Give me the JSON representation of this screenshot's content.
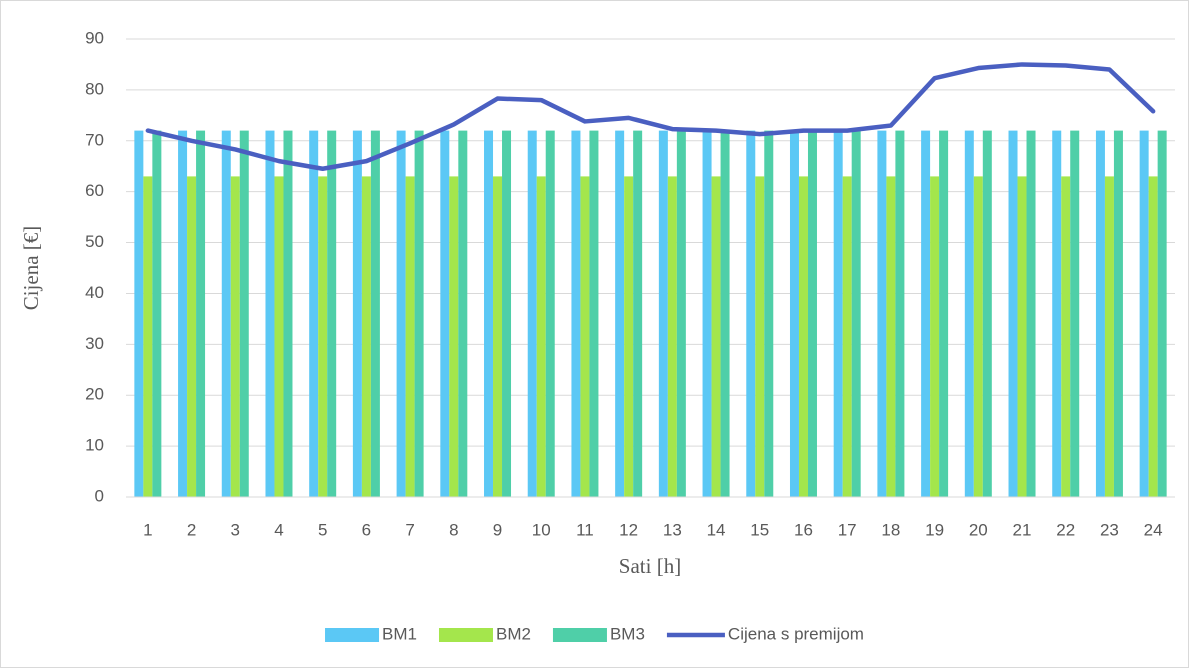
{
  "chart_data": {
    "type": "combo",
    "x_label": "Sati [h]",
    "y_label": "Cijena [€]",
    "categories": [
      1,
      2,
      3,
      4,
      5,
      6,
      7,
      8,
      9,
      10,
      11,
      12,
      13,
      14,
      15,
      16,
      17,
      18,
      19,
      20,
      21,
      22,
      23,
      24
    ],
    "series": [
      {
        "name": "BM1",
        "type": "bar",
        "color": "#5bc8f5",
        "values": [
          72,
          72,
          72,
          72,
          72,
          72,
          72,
          72,
          72,
          72,
          72,
          72,
          72,
          72,
          72,
          72,
          72,
          72,
          72,
          72,
          72,
          72,
          72,
          72
        ]
      },
      {
        "name": "BM2",
        "type": "bar",
        "color": "#a4e64c",
        "values": [
          63,
          63,
          63,
          63,
          63,
          63,
          63,
          63,
          63,
          63,
          63,
          63,
          63,
          63,
          63,
          63,
          63,
          63,
          63,
          63,
          63,
          63,
          63,
          63
        ]
      },
      {
        "name": "BM3",
        "type": "bar",
        "color": "#4fcfa8",
        "values": [
          72,
          72,
          72,
          72,
          72,
          72,
          72,
          72,
          72,
          72,
          72,
          72,
          72,
          72,
          72,
          72,
          72,
          72,
          72,
          72,
          72,
          72,
          72,
          72
        ]
      },
      {
        "name": "Cijena s premijom",
        "type": "line",
        "color": "#4a5fc1",
        "values": [
          72,
          70,
          68.3,
          66,
          64.5,
          66,
          69.5,
          73.2,
          78.3,
          78,
          73.8,
          74.5,
          72.3,
          72,
          71.3,
          72,
          72,
          73,
          82.3,
          84.3,
          85,
          84.8,
          84,
          75.8
        ]
      }
    ],
    "ylim": [
      0,
      90
    ],
    "yticks": [
      0,
      10,
      20,
      30,
      40,
      50,
      60,
      70,
      80,
      90
    ],
    "grid": true,
    "legend": "bottom"
  }
}
